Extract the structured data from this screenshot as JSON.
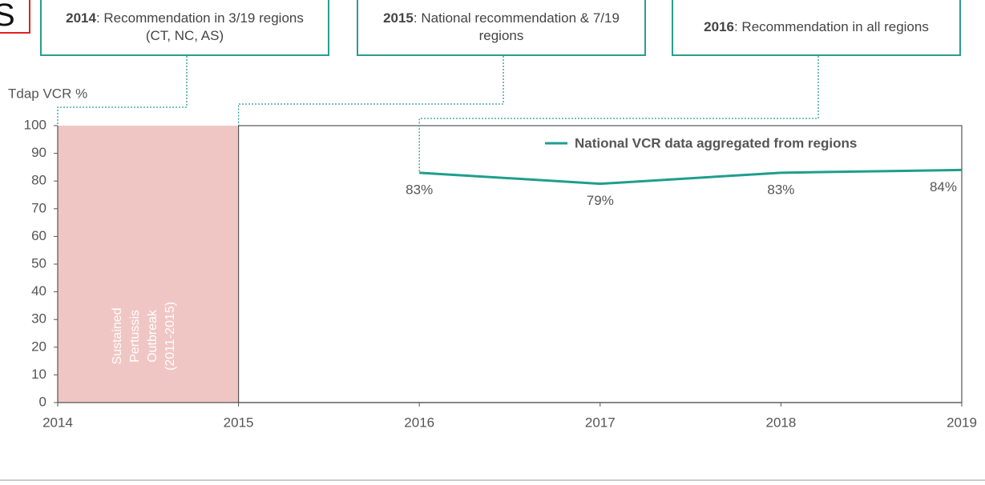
{
  "corner_text": "S",
  "chart_data": {
    "type": "line",
    "ylabel": "Tdap VCR %",
    "xlim": [
      2014,
      2019
    ],
    "xticks": [
      2014,
      2015,
      2016,
      2017,
      2018,
      2019
    ],
    "ylim": [
      0,
      100
    ],
    "yticks": [
      0,
      10,
      20,
      30,
      40,
      50,
      60,
      70,
      80,
      90,
      100
    ],
    "series": [
      {
        "name": "National VCR data aggregated from regions",
        "color": "#1f9e8c",
        "x": [
          2016,
          2017,
          2018,
          2019
        ],
        "values": [
          83,
          79,
          83,
          84
        ],
        "value_labels": [
          "83%",
          "79%",
          "83%",
          "84%"
        ]
      }
    ],
    "shaded": {
      "x": [
        2014,
        2015
      ],
      "color": "#f0c6c4",
      "label": [
        "Sustained",
        "Pertussis",
        "Outbreak",
        "(2011-2015)"
      ]
    },
    "annotations": [
      {
        "year": "2014",
        "text": ": Recommendation in 3/19 regions (CT, NC, AS)"
      },
      {
        "year": "2015",
        "text": ": National recommendation & 7/19 regions"
      },
      {
        "year": "2016",
        "text": ": Recommendation in all regions"
      }
    ]
  }
}
